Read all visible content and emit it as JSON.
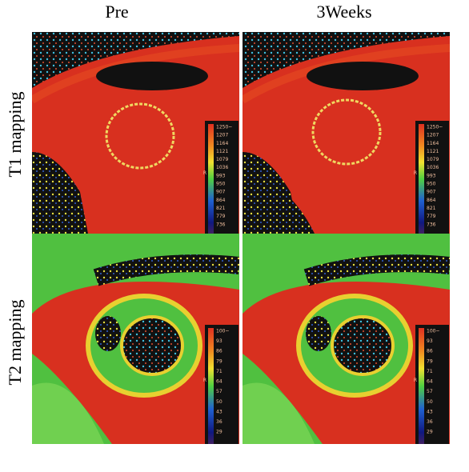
{
  "columns": [
    "Pre",
    "3Weeks"
  ],
  "rows": [
    "T1 mapping",
    "T2 mapping"
  ],
  "scales": [
    {
      "labels": [
        "1250~",
        "1207",
        "1164",
        "1121",
        "1079",
        "1036",
        "993",
        "950",
        "907",
        "864",
        "821",
        "779",
        "736"
      ],
      "unit": "R"
    },
    {
      "labels": [
        "100~",
        "93",
        "86",
        "79",
        "71",
        "64",
        "57",
        "50",
        "43",
        "36",
        "29"
      ],
      "unit": "R"
    }
  ]
}
